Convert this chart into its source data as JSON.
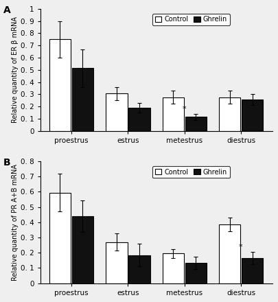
{
  "panel_A": {
    "title": "A",
    "ylabel": "Relative quantity of ER β mRNA",
    "ylim": [
      0,
      1.0
    ],
    "yticks": [
      0,
      0.1,
      0.2,
      0.3,
      0.4,
      0.5,
      0.6,
      0.7,
      0.8,
      0.9,
      1
    ],
    "ytick_labels": [
      "0",
      "0. 1",
      "0. 2",
      "0. 3",
      "0. 4",
      "0. 5",
      "0. 6",
      "0. 7",
      "0. 8",
      "0. 9",
      "1"
    ],
    "categories": [
      "proestrus",
      "estrus",
      "metestrus",
      "diestrus"
    ],
    "control_values": [
      0.75,
      0.305,
      0.275,
      0.275
    ],
    "ghrelin_values": [
      0.515,
      0.19,
      0.115,
      0.255
    ],
    "control_errors": [
      0.15,
      0.055,
      0.055,
      0.055
    ],
    "ghrelin_errors": [
      0.155,
      0.04,
      0.025,
      0.045
    ],
    "star_index": 2,
    "star_on_ghrelin": true
  },
  "panel_B": {
    "title": "B",
    "ylabel": "Relative quantity of PR A+B mRNA",
    "ylim": [
      0,
      0.8
    ],
    "yticks": [
      0,
      0.1,
      0.2,
      0.3,
      0.4,
      0.5,
      0.6,
      0.7,
      0.8
    ],
    "ytick_labels": [
      "0",
      "0. 1",
      "0. 2",
      "0. 3",
      "0. 4",
      "0. 5",
      "0. 6",
      "0. 7",
      "0. 8"
    ],
    "categories": [
      "proestrus",
      "estrus",
      "metestrus",
      "diestrus"
    ],
    "control_values": [
      0.595,
      0.27,
      0.195,
      0.385
    ],
    "ghrelin_values": [
      0.44,
      0.185,
      0.135,
      0.165
    ],
    "control_errors": [
      0.125,
      0.055,
      0.03,
      0.045
    ],
    "ghrelin_errors": [
      0.105,
      0.075,
      0.04,
      0.04
    ],
    "star_index": 3,
    "star_on_ghrelin": true
  },
  "legend_labels": [
    "Control",
    "Ghrelin"
  ],
  "control_color": "white",
  "ghrelin_color": "#111111",
  "bar_edge_color": "black",
  "bar_width": 0.38,
  "font_size": 7.5,
  "title_font_size": 10,
  "background_color": "#efefef"
}
